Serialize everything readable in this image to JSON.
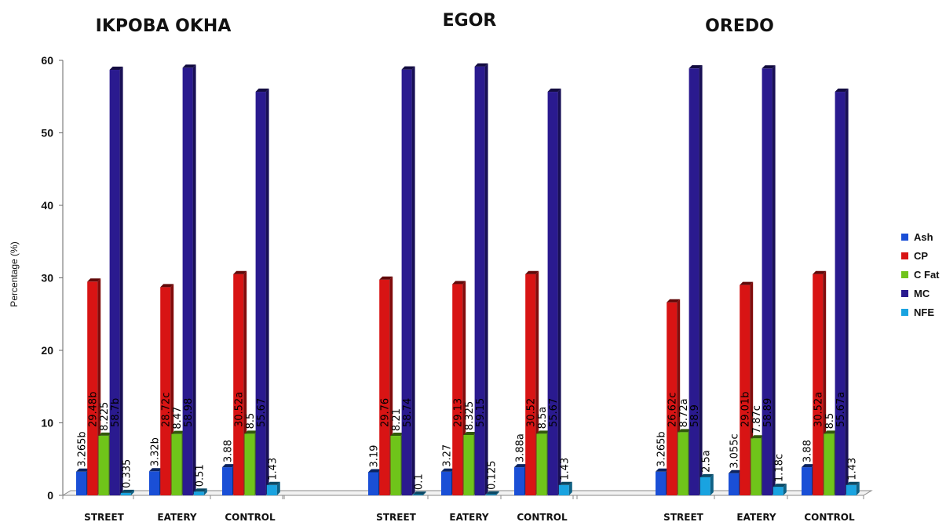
{
  "chart_data": {
    "type": "bar",
    "ylabel": "Percentage (%)",
    "ylim": [
      0,
      60
    ],
    "yticks": [
      0,
      10,
      20,
      30,
      40,
      50,
      60
    ],
    "grid": false,
    "legend_position": "right",
    "categories": [
      "STREET",
      "EATERY",
      "CONTROL"
    ],
    "series": [
      {
        "name": "Ash",
        "color": "#1a4fd6"
      },
      {
        "name": "CP",
        "color": "#d81414"
      },
      {
        "name": "C Fat",
        "color": "#6fc41a"
      },
      {
        "name": "MC",
        "color": "#2a1a8f"
      },
      {
        "name": "NFE",
        "color": "#19a3e0"
      }
    ],
    "groups": [
      {
        "title": "IKPOBA OKHA",
        "categories": [
          "STREET",
          "EATERY",
          "CONTROL"
        ],
        "values": {
          "Ash": [
            3.265,
            3.32,
            3.88
          ],
          "CP": [
            29.48,
            28.72,
            30.52
          ],
          "C Fat": [
            8.225,
            8.47,
            8.5
          ],
          "MC": [
            58.7,
            58.98,
            55.67
          ],
          "NFE": [
            0.335,
            0.51,
            1.43
          ]
        },
        "labels": {
          "Ash": [
            "3.265b",
            "3.32b",
            "3.88"
          ],
          "CP": [
            "29.48b",
            "28.72c",
            "30.52a"
          ],
          "C Fat": [
            "8.225",
            "8.47",
            "8.5"
          ],
          "MC": [
            "58.7b",
            "58.98",
            "55.67"
          ],
          "NFE": [
            "0.335",
            "0.51",
            "1.43"
          ]
        }
      },
      {
        "title": "EGOR",
        "categories": [
          "STREET",
          "EATERY",
          "CONTROL"
        ],
        "values": {
          "Ash": [
            3.19,
            3.27,
            3.88
          ],
          "CP": [
            29.76,
            29.13,
            30.52
          ],
          "C Fat": [
            8.21,
            8.325,
            8.5
          ],
          "MC": [
            58.74,
            59.15,
            55.67
          ],
          "NFE": [
            0.1,
            0.125,
            1.43
          ]
        },
        "labels": {
          "Ash": [
            "3.19",
            "3.27",
            "3.88a"
          ],
          "CP": [
            "29.76",
            "29.13",
            "30.52"
          ],
          "C Fat": [
            "8.21",
            "8.325",
            "8.5a"
          ],
          "MC": [
            "58.74",
            "59.15",
            "55.67"
          ],
          "NFE": [
            "0.1",
            "0.125",
            "1.43"
          ]
        }
      },
      {
        "title": "OREDO",
        "categories": [
          "STREET",
          "EATERY",
          "CONTROL"
        ],
        "values": {
          "Ash": [
            3.265,
            3.055,
            3.88
          ],
          "CP": [
            26.62,
            29.01,
            30.52
          ],
          "C Fat": [
            8.72,
            7.87,
            8.5
          ],
          "MC": [
            58.9,
            58.89,
            55.67
          ],
          "NFE": [
            2.5,
            1.18,
            1.43
          ]
        },
        "labels": {
          "Ash": [
            "3.265b",
            "3.055c",
            "3.88"
          ],
          "CP": [
            "26.62c",
            "29.01b",
            "30.52a"
          ],
          "C Fat": [
            "8.72a",
            "7.87c",
            "8.5"
          ],
          "MC": [
            "58.9",
            "58.89",
            "55.67a"
          ],
          "NFE": [
            "2.5a",
            "1.18c",
            "1.43"
          ]
        }
      }
    ]
  }
}
